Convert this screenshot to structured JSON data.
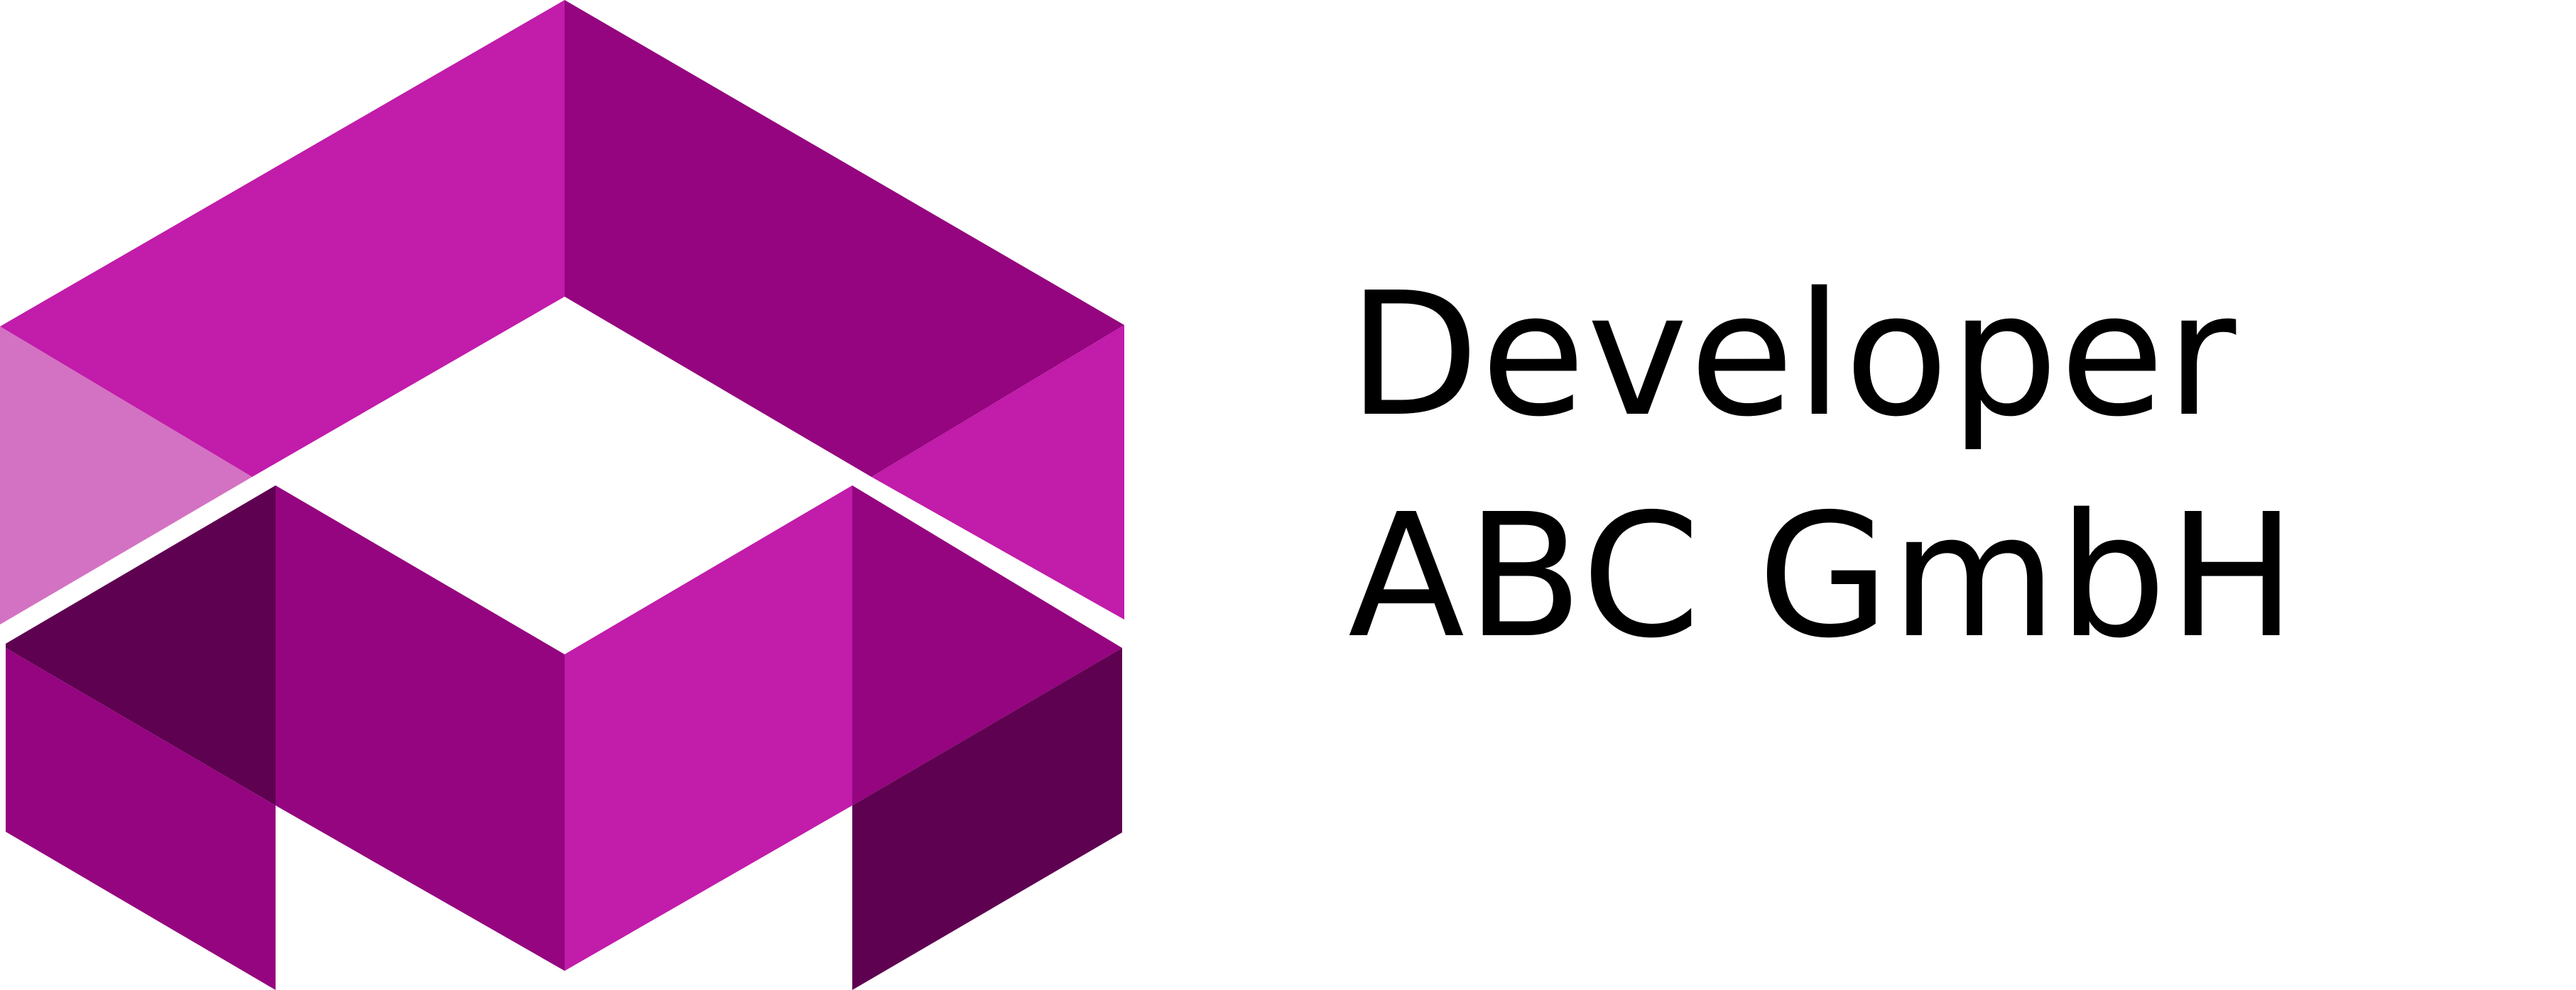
{
  "logo": {
    "icon": "isometric-cube-logo-icon",
    "colors": {
      "light": "#d372c2",
      "bright": "#c11caa",
      "mid": "#94057f",
      "dark": "#5f0151"
    }
  },
  "wordmark": {
    "line1": "Developer",
    "line2": "ABC GmbH"
  }
}
